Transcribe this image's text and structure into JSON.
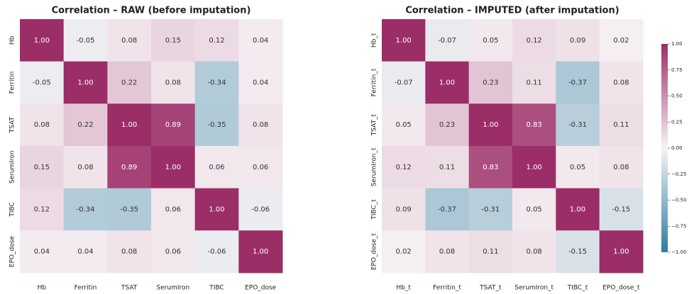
{
  "chart_data": [
    {
      "type": "heatmap",
      "title": "Correlation – RAW (before imputation)",
      "categories": [
        "Hb",
        "Ferritin",
        "TSAT",
        "SerumIron",
        "TIBC",
        "EPO_dose"
      ],
      "values": [
        [
          1,
          -0.05,
          0.08,
          0.15,
          0.12,
          0.04
        ],
        [
          -0.05,
          1,
          0.22,
          0.08,
          -0.34,
          0.04
        ],
        [
          0.08,
          0.22,
          1,
          0.89,
          -0.35,
          0.08
        ],
        [
          0.15,
          0.08,
          0.89,
          1,
          0.06,
          0.06
        ],
        [
          0.12,
          -0.34,
          -0.35,
          0.06,
          1,
          -0.06
        ],
        [
          0.04,
          0.04,
          0.08,
          0.06,
          -0.06,
          1
        ]
      ],
      "value_labels": [
        [
          "1.00",
          "-0.05",
          "0.08",
          "0.15",
          "0.12",
          "0.04"
        ],
        [
          "-0.05",
          "1.00",
          "0.22",
          "0.08",
          "-0.34",
          "0.04"
        ],
        [
          "0.08",
          "0.22",
          "1.00",
          "0.89",
          "-0.35",
          "0.08"
        ],
        [
          "0.15",
          "0.08",
          "0.89",
          "1.00",
          "0.06",
          "0.06"
        ],
        [
          "0.12",
          "-0.34",
          "-0.35",
          "0.06",
          "1.00",
          "-0.06"
        ],
        [
          "0.04",
          "0.04",
          "0.08",
          "0.06",
          "-0.06",
          "1.00"
        ]
      ],
      "zlim": [
        -1,
        1
      ],
      "colormap": [
        "#2b7ea0",
        "#f7f3f5",
        "#9b2d67"
      ]
    },
    {
      "type": "heatmap",
      "title": "Correlation – IMPUTED (after imputation)",
      "categories": [
        "Hb_t",
        "Ferritin_t",
        "TSAT_t",
        "SerumIron_t",
        "TIBC_t",
        "EPO_dose_t"
      ],
      "values": [
        [
          1,
          -0.07,
          0.05,
          0.12,
          0.09,
          0.02
        ],
        [
          -0.07,
          1,
          0.23,
          0.11,
          -0.37,
          0.08
        ],
        [
          0.05,
          0.23,
          1,
          0.83,
          -0.31,
          0.11
        ],
        [
          0.12,
          0.11,
          0.83,
          1,
          0.05,
          0.08
        ],
        [
          0.09,
          -0.37,
          -0.31,
          0.05,
          1,
          -0.15
        ],
        [
          0.02,
          0.08,
          0.11,
          0.08,
          -0.15,
          1
        ]
      ],
      "value_labels": [
        [
          "1.00",
          "-0.07",
          "0.05",
          "0.12",
          "0.09",
          "0.02"
        ],
        [
          "-0.07",
          "1.00",
          "0.23",
          "0.11",
          "-0.37",
          "0.08"
        ],
        [
          "0.05",
          "0.23",
          "1.00",
          "0.83",
          "-0.31",
          "0.11"
        ],
        [
          "0.12",
          "0.11",
          "0.83",
          "1.00",
          "0.05",
          "0.08"
        ],
        [
          "0.09",
          "-0.37",
          "-0.31",
          "0.05",
          "1.00",
          "-0.15"
        ],
        [
          "0.02",
          "0.08",
          "0.11",
          "0.08",
          "-0.15",
          "1.00"
        ]
      ],
      "zlim": [
        -1,
        1
      ],
      "colormap": [
        "#2b7ea0",
        "#f7f3f5",
        "#9b2d67"
      ],
      "zticks": [
        {
          "value": 1,
          "label": "1.00"
        },
        {
          "value": 0.75,
          "label": "0.75"
        },
        {
          "value": 0.5,
          "label": "0.50"
        },
        {
          "value": 0.25,
          "label": "0.25"
        },
        {
          "value": 0,
          "label": "0.00"
        },
        {
          "value": -0.25,
          "label": "−0.25"
        },
        {
          "value": -0.5,
          "label": "−0.50"
        },
        {
          "value": -0.75,
          "label": "−0.75"
        },
        {
          "value": -1,
          "label": "−1.00"
        }
      ]
    }
  ]
}
